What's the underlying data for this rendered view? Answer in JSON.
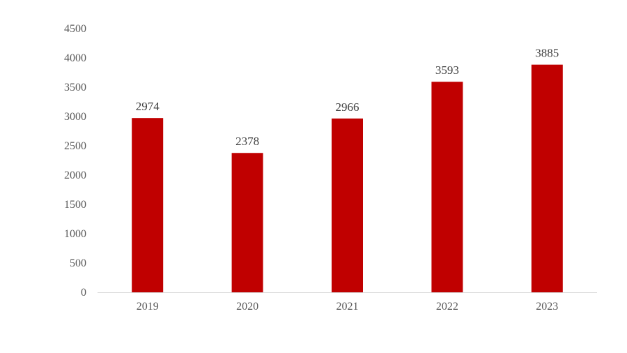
{
  "chart_data": {
    "type": "bar",
    "title": "",
    "xlabel": "",
    "ylabel": "",
    "categories": [
      "2019",
      "2020",
      "2021",
      "2022",
      "2023"
    ],
    "values": [
      2974,
      2378,
      2966,
      3593,
      3885
    ],
    "data_labels": [
      "2974",
      "2378",
      "2966",
      "3593",
      "3885"
    ],
    "ylim": [
      0,
      4500
    ],
    "yticks": [
      0,
      500,
      1000,
      1500,
      2000,
      2500,
      3000,
      3500,
      4000,
      4500
    ],
    "grid": false,
    "legend": "none",
    "colors": {
      "bar": "#C00000",
      "axis": "#D9D9D9"
    }
  }
}
